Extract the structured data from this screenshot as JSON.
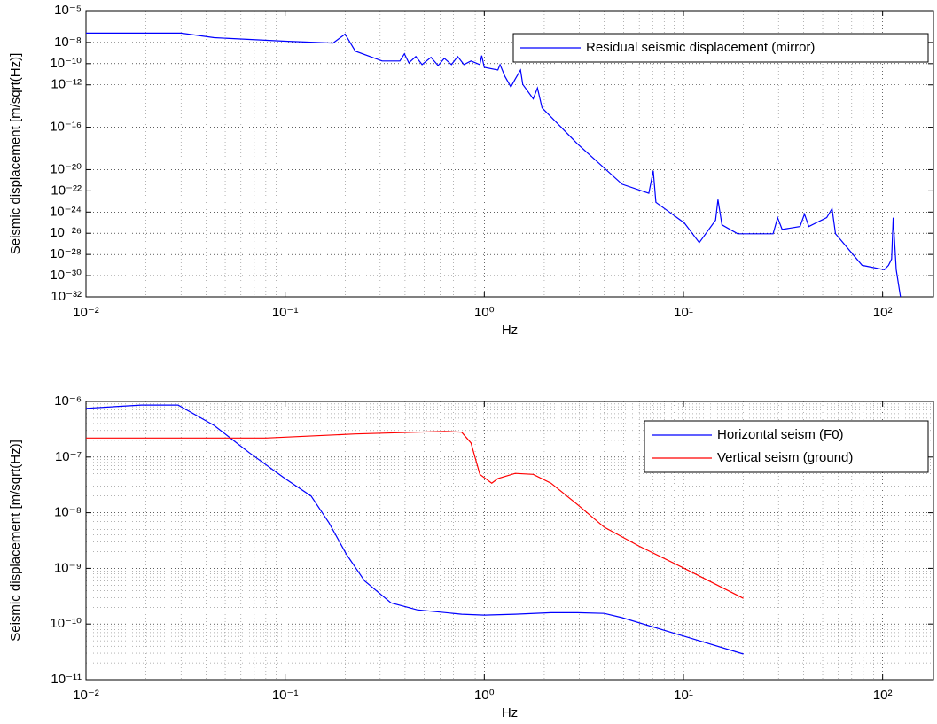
{
  "chart_data": [
    {
      "type": "line",
      "xlabel": "Hz",
      "ylabel": "Seismic displacement [m/sqrt(Hz)]",
      "xscale": "log",
      "yscale": "log",
      "grid": true,
      "minor_grid": true,
      "legend": "upper right",
      "xlim": [
        0.01,
        180
      ],
      "ylim": [
        1e-32,
        1e-05
      ],
      "xticks": [
        {
          "value": 0.01,
          "label": "10⁻²"
        },
        {
          "value": 0.1,
          "label": "10⁻¹"
        },
        {
          "value": 1,
          "label": "10⁰"
        },
        {
          "value": 10,
          "label": "10¹"
        },
        {
          "value": 100,
          "label": "10²"
        }
      ],
      "yticks": [
        {
          "value": 1e-32,
          "label": "10⁻³²"
        },
        {
          "value": 1e-30,
          "label": "10⁻³⁰"
        },
        {
          "value": 1e-28,
          "label": "10⁻²⁸"
        },
        {
          "value": 1e-26,
          "label": "10⁻²⁶"
        },
        {
          "value": 1e-24,
          "label": "10⁻²⁴"
        },
        {
          "value": 1e-22,
          "label": "10⁻²²"
        },
        {
          "value": 1e-20,
          "label": "10⁻²⁰"
        },
        {
          "value": 1e-16,
          "label": "10⁻¹⁶"
        },
        {
          "value": 1e-12,
          "label": "10⁻¹²"
        },
        {
          "value": 1e-10,
          "label": "10⁻¹⁰"
        },
        {
          "value": 1e-08,
          "label": "10⁻⁸"
        },
        {
          "value": 1e-05,
          "label": "10⁻⁵"
        }
      ],
      "series": [
        {
          "name": "Residual seismic displacement (mirror)",
          "color": "#0000ff",
          "x": [
            0.01,
            0.03,
            0.044,
            0.1,
            0.174,
            0.2,
            0.225,
            0.307,
            0.377,
            0.397,
            0.418,
            0.453,
            0.487,
            0.54,
            0.586,
            0.63,
            0.684,
            0.735,
            0.79,
            0.857,
            0.95,
            0.97,
            1,
            1.17,
            1.2,
            1.27,
            1.36,
            1.43,
            1.52,
            1.56,
            1.76,
            1.85,
            1.95,
            2.94,
            4.92,
            6.7,
            7.05,
            7.27,
            10.1,
            12,
            14.5,
            14.9,
            15.6,
            18.7,
            28.2,
            29.7,
            31.3,
            38.5,
            40.5,
            42.6,
            52.4,
            55.7,
            58,
            78.9,
            102,
            107,
            111,
            113,
            117,
            123
          ],
          "values": [
            7.6e-08,
            7.6e-08,
            2.8e-08,
            1.3e-08,
            8.7e-09,
            6.1e-08,
            1.5e-09,
            1.8e-10,
            1.8e-10,
            8.5e-10,
            1.2e-10,
            4.7e-10,
            8.1e-11,
            3.9e-10,
            6.6e-11,
            3.2e-10,
            8.1e-11,
            4.7e-10,
            8.1e-11,
            1.8e-10,
            8.1e-11,
            5.8e-10,
            4.5e-11,
            2.5e-11,
            8.1e-11,
            6.3e-12,
            6.3e-13,
            3.5e-12,
            2.5e-11,
            1.1e-12,
            4.8e-14,
            5e-13,
            6.8e-15,
            2.7e-18,
            4.2e-22,
            5.9e-23,
            7.8e-21,
            8.3e-24,
            9.3e-26,
            1.3e-27,
            1.7e-25,
            1.5e-23,
            6.3e-26,
            8.9e-27,
            8.9e-27,
            3e-25,
            2.3e-26,
            4.3e-26,
            6.6e-25,
            4.3e-26,
            3e-25,
            2.1e-24,
            8.9e-27,
            9.5e-30,
            3.6e-30,
            9.5e-30,
            3.7e-29,
            3e-25,
            3.6e-30,
            1e-32
          ]
        }
      ]
    },
    {
      "type": "line",
      "xlabel": "Hz",
      "ylabel": "Seismic displacement [m/sqrt(Hz)]",
      "xscale": "log",
      "yscale": "log",
      "grid": true,
      "minor_grid": true,
      "legend": "upper right",
      "xlim": [
        0.01,
        180
      ],
      "ylim": [
        1e-11,
        1e-06
      ],
      "xticks": [
        {
          "value": 0.01,
          "label": "10⁻²"
        },
        {
          "value": 0.1,
          "label": "10⁻¹"
        },
        {
          "value": 1,
          "label": "10⁰"
        },
        {
          "value": 10,
          "label": "10¹"
        },
        {
          "value": 100,
          "label": "10²"
        }
      ],
      "yticks": [
        {
          "value": 1e-11,
          "label": "10⁻¹¹"
        },
        {
          "value": 1e-10,
          "label": "10⁻¹⁰"
        },
        {
          "value": 1e-09,
          "label": "10⁻⁹"
        },
        {
          "value": 1e-08,
          "label": "10⁻⁸"
        },
        {
          "value": 1e-07,
          "label": "10⁻⁷"
        },
        {
          "value": 1e-06,
          "label": "10⁻⁶"
        }
      ],
      "series": [
        {
          "name": "Horizontal seism (F0)",
          "color": "#0000ff",
          "x": [
            0.01,
            0.019,
            0.029,
            0.044,
            0.066,
            0.1,
            0.135,
            0.166,
            0.203,
            0.25,
            0.34,
            0.46,
            0.77,
            1,
            1.43,
            2.16,
            2.94,
            4.0,
            4.92,
            10.1,
            20
          ],
          "values": [
            7.5e-07,
            8.6e-07,
            8.6e-07,
            3.7e-07,
            1.2e-07,
            4.1e-08,
            2e-08,
            6.6e-09,
            1.8e-09,
            6e-10,
            2.4e-10,
            1.8e-10,
            1.5e-10,
            1.45e-10,
            1.5e-10,
            1.6e-10,
            1.6e-10,
            1.55e-10,
            1.3e-10,
            6e-11,
            2.9e-11
          ]
        },
        {
          "name": "Vertical seism (ground)",
          "color": "#ff0000",
          "x": [
            0.01,
            0.08,
            0.225,
            0.63,
            0.77,
            0.857,
            0.95,
            1.09,
            1.17,
            1.43,
            1.76,
            2.16,
            2.94,
            4.0,
            6.0,
            10.1,
            20
          ],
          "values": [
            2.2e-07,
            2.2e-07,
            2.6e-07,
            2.9e-07,
            2.8e-07,
            1.8e-07,
            4.9e-08,
            3.4e-08,
            4.1e-08,
            5.1e-08,
            4.9e-08,
            3.4e-08,
            1.4e-08,
            5.5e-09,
            2.5e-09,
            1e-09,
            2.9e-10
          ]
        }
      ]
    }
  ]
}
